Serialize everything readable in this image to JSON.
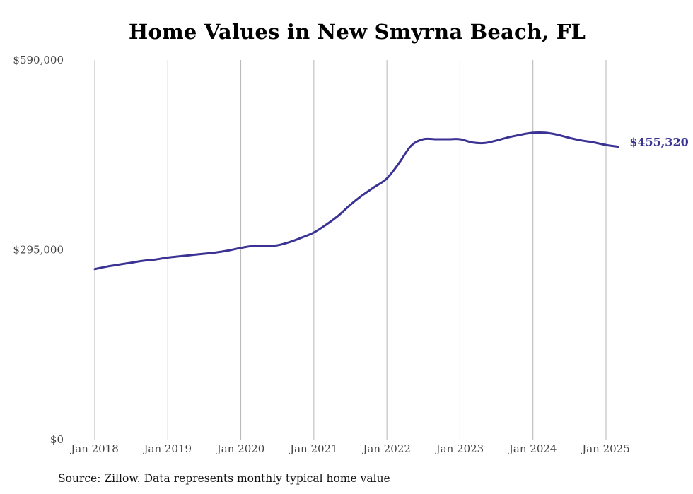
{
  "chart_data": {
    "type": "line",
    "title": "Home Values in New Smyrna Beach, FL",
    "xlabel": "",
    "ylabel": "",
    "ylim": [
      0,
      590000
    ],
    "y_ticks": [
      "$0",
      "$295,000",
      "$590,000"
    ],
    "y_tick_values": [
      0,
      295000,
      590000
    ],
    "x_ticks": [
      "Jan 2018",
      "Jan 2019",
      "Jan 2020",
      "Jan 2021",
      "Jan 2022",
      "Jan 2023",
      "Jan 2024",
      "Jan 2025"
    ],
    "x_tick_values": [
      "2018-01",
      "2019-01",
      "2020-01",
      "2021-01",
      "2022-01",
      "2023-01",
      "2024-01",
      "2025-01"
    ],
    "grid": "vertical",
    "line_color": "#3a3394",
    "end_label": "$455,320",
    "series": [
      {
        "x": [
          "2018-01",
          "2018-03",
          "2018-05",
          "2018-07",
          "2018-09",
          "2018-11",
          "2019-01",
          "2019-03",
          "2019-05",
          "2019-07",
          "2019-09",
          "2019-11",
          "2020-01",
          "2020-03",
          "2020-05",
          "2020-07",
          "2020-09",
          "2020-11",
          "2021-01",
          "2021-03",
          "2021-05",
          "2021-07",
          "2021-09",
          "2021-11",
          "2022-01",
          "2022-03",
          "2022-05",
          "2022-07",
          "2022-09",
          "2022-11",
          "2023-01",
          "2023-03",
          "2023-05",
          "2023-07",
          "2023-09",
          "2023-11",
          "2024-01",
          "2024-03",
          "2024-05",
          "2024-07",
          "2024-09",
          "2024-11",
          "2025-01",
          "2025-03"
        ],
        "values": [
          265000,
          269000,
          272000,
          275000,
          278000,
          280000,
          283000,
          285000,
          287000,
          289000,
          291000,
          294000,
          298000,
          301000,
          301000,
          302000,
          307000,
          314000,
          322000,
          334000,
          348000,
          365000,
          380000,
          393000,
          406000,
          430000,
          457000,
          467000,
          467000,
          467000,
          467000,
          462000,
          461000,
          465000,
          470000,
          474000,
          477000,
          477000,
          474000,
          469000,
          465000,
          462000,
          458000,
          455320
        ]
      }
    ]
  },
  "source": "Source: Zillow. Data represents monthly typical home value"
}
